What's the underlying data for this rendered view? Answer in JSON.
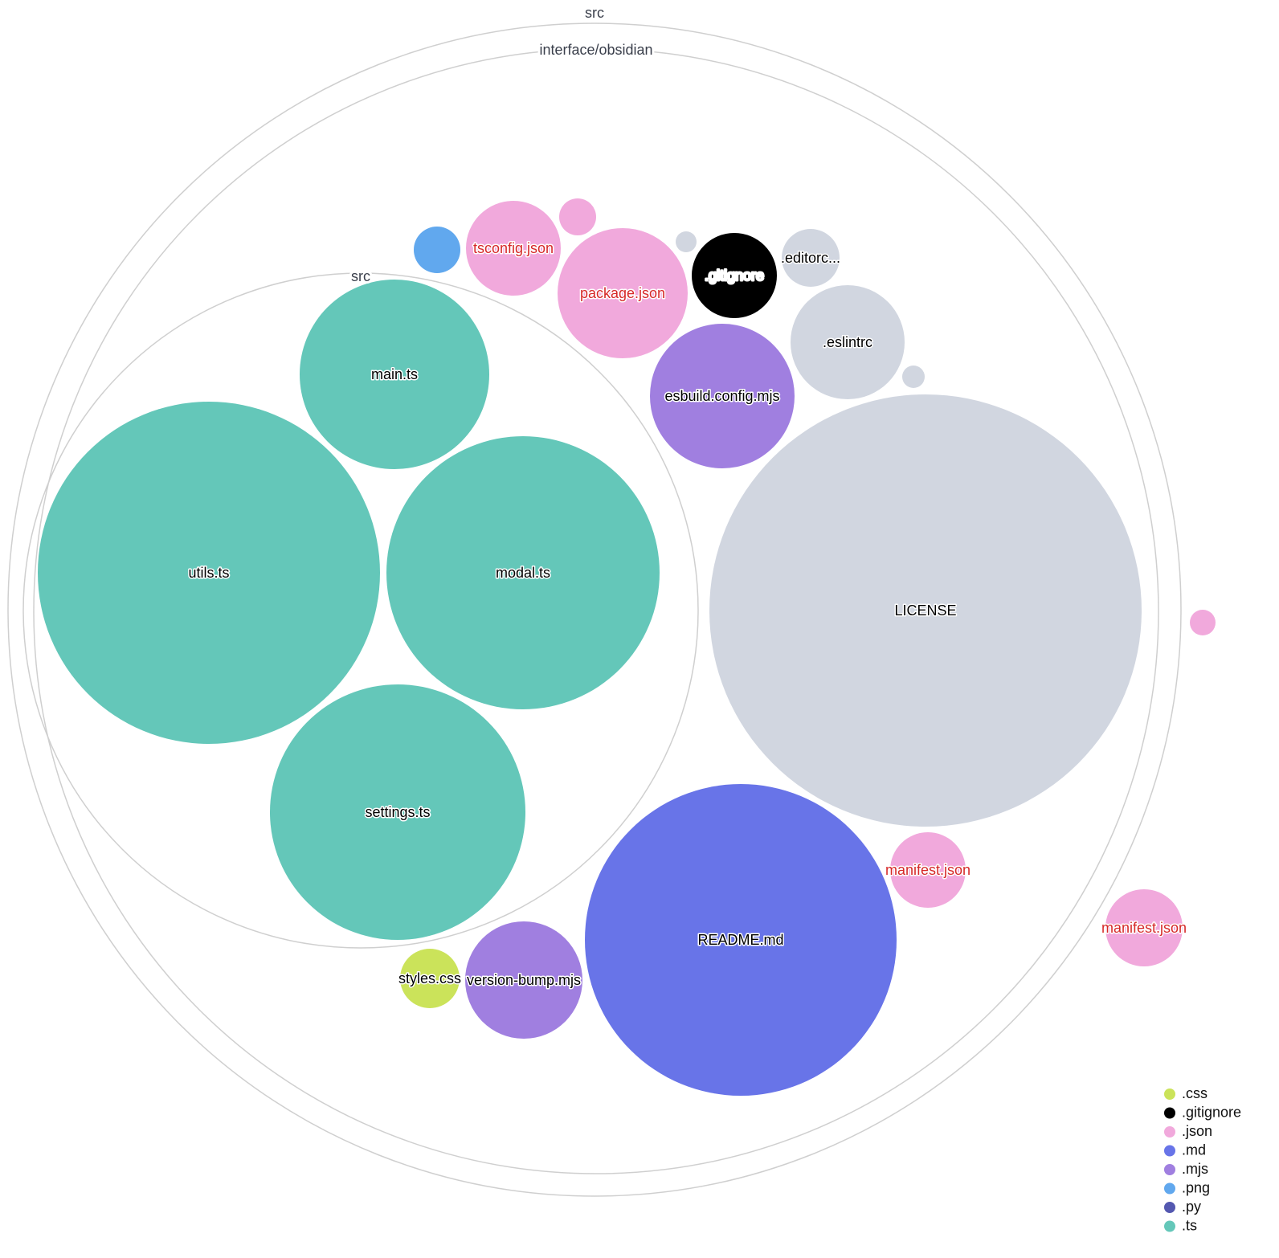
{
  "folders": [
    {
      "name": "src"
    },
    {
      "name": "interface/obsidian"
    },
    {
      "name": "src"
    }
  ],
  "files": [
    {
      "label": "main.ts",
      "ext": ".ts"
    },
    {
      "label": "utils.ts",
      "ext": ".ts"
    },
    {
      "label": "modal.ts",
      "ext": ".ts"
    },
    {
      "label": "settings.ts",
      "ext": ".ts"
    },
    {
      "label": "LICENSE",
      "ext": ""
    },
    {
      "label": "README.md",
      "ext": ".md"
    },
    {
      "label": "esbuild.config.mjs",
      "ext": ".mjs"
    },
    {
      "label": ".eslintrc",
      "ext": ""
    },
    {
      "label": "package.json",
      "ext": ".json",
      "highlight": true
    },
    {
      "label": ".gitignore",
      "ext": ".gitignore"
    },
    {
      "label": ".editorc...",
      "ext": ""
    },
    {
      "label": "tsconfig.json",
      "ext": ".json",
      "highlight": true
    },
    {
      "label": "",
      "ext": ".json"
    },
    {
      "label": "",
      "ext": ".png"
    },
    {
      "label": "",
      "ext": ""
    },
    {
      "label": "",
      "ext": ""
    },
    {
      "label": "manifest.json",
      "ext": ".json",
      "highlight": true
    },
    {
      "label": "version-bump.mjs",
      "ext": ".mjs"
    },
    {
      "label": "styles.css",
      "ext": ".css"
    },
    {
      "label": "manifest.json",
      "ext": ".json",
      "highlight": true
    },
    {
      "label": "",
      "ext": ".json"
    }
  ],
  "colors": {
    ".css": "#cbe35a",
    ".gitignore": "#000000",
    ".json": "#f1a9dc",
    ".md": "#6874e8",
    ".mjs": "#a07fe0",
    ".png": "#61a8ee",
    ".py": "#5458b0",
    ".ts": "#64c7b9",
    "other": "#d1d6e0",
    "highlight_text": "#d62828"
  },
  "legend": [
    ".css",
    ".gitignore",
    ".json",
    ".md",
    ".mjs",
    ".png",
    ".py",
    ".ts"
  ]
}
